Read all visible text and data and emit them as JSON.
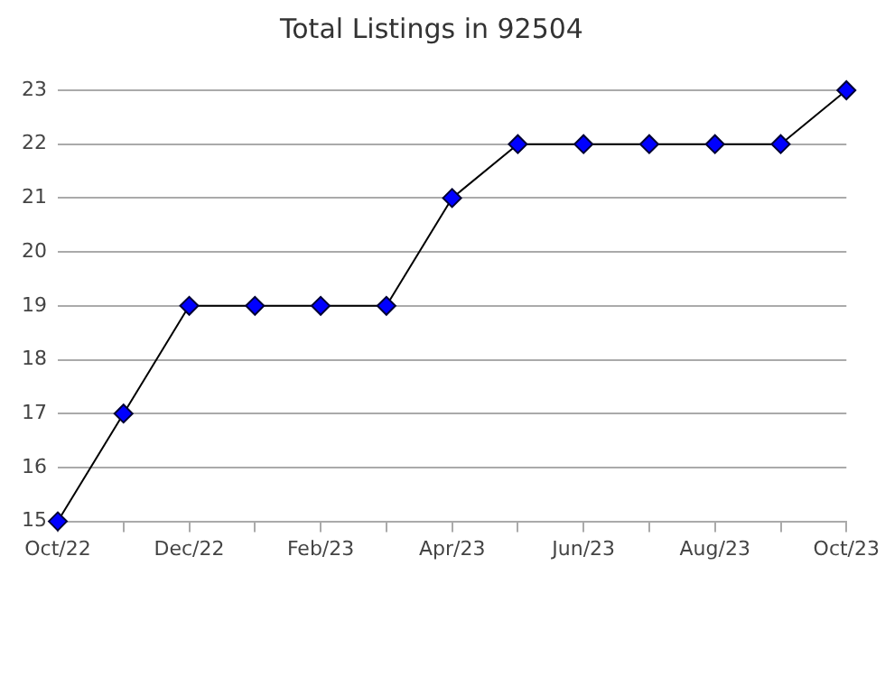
{
  "chart_data": {
    "type": "line",
    "title": "Total Listings in 92504",
    "categories": [
      "Oct/22",
      null,
      "Dec/22",
      null,
      "Feb/23",
      null,
      "Apr/23",
      null,
      "Jun/23",
      null,
      "Aug/23",
      null,
      "Oct/23"
    ],
    "series": [
      {
        "color": "#0000ff",
        "values": [
          15,
          17,
          19,
          19,
          19,
          19,
          21,
          22,
          22,
          22,
          22,
          22,
          23
        ]
      }
    ],
    "ylim": [
      15,
      23
    ],
    "yticks": [
      15,
      16,
      17,
      18,
      19,
      20,
      21,
      22,
      23
    ],
    "grid": "y",
    "legend": false,
    "marker": "diamond",
    "line_style": "solid"
  }
}
